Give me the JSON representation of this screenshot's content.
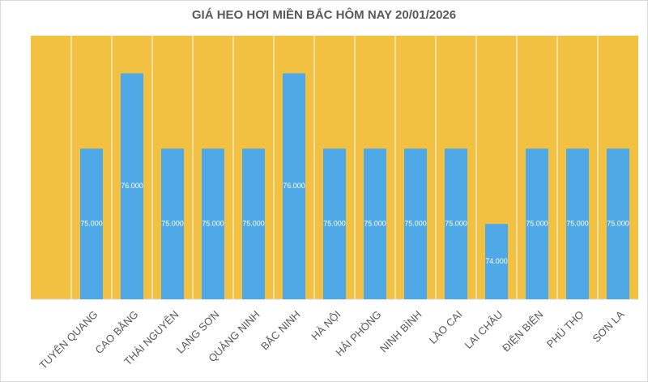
{
  "chart_data": {
    "type": "bar",
    "title": "GIÁ HEO HƠI MIỀN BẮC HÔM NAY 20/01/2026",
    "categories": [
      null,
      "TUYÊN QUANG",
      "CAO BẰNG",
      "THÁI NGUYÊN",
      "LẠNG SƠN",
      "QUẢNG NINH",
      "BẮC NINH",
      "HÀ NỘI",
      "HẢI PHÒNG",
      "NINH BÌNH",
      "LÀO CAI",
      "LAI CHÂU",
      "ĐIỆN BIÊN",
      "PHÚ THỌ",
      "SƠN LA"
    ],
    "values": [
      null,
      75000,
      76000,
      75000,
      75000,
      75000,
      76000,
      75000,
      75000,
      75000,
      75000,
      74000,
      75000,
      75000,
      75000
    ],
    "value_labels": [
      null,
      "75.000",
      "76.000",
      "75.000",
      "75.000",
      "75.000",
      "76.000",
      "75.000",
      "75.000",
      "75.000",
      "75.000",
      "74.000",
      "75.000",
      "75.000",
      "75.000"
    ],
    "color": "#4ea9e6",
    "background_color": "#f3c142",
    "ylim": [
      73000,
      76500
    ]
  }
}
